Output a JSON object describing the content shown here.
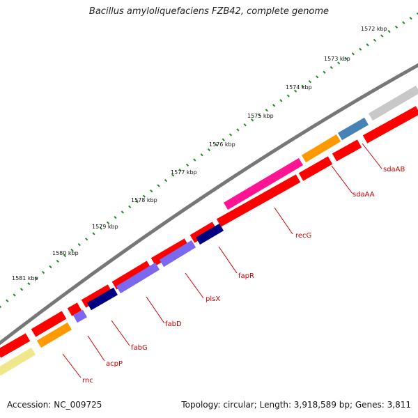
{
  "title": "Bacillus amyloliquefaciens FZB42, complete genome",
  "accession_text": "Accession: NC_009725",
  "summary_text": "Topology: circular; Length: 3,918,589 bp; Genes: 3,811",
  "colors": {
    "backbone": "#777777",
    "forward_cds": "#ff0000",
    "tick": "#228822",
    "label": "#cc0000"
  },
  "scale_labels": [
    "1572 kbp",
    "1573 kbp",
    "1574 kbp",
    "1575 kbp",
    "1576 kbp",
    "1577 kbp",
    "1578 kbp",
    "1579 kbp",
    "1580 kbp",
    "1581 kbp"
  ],
  "gene_labels": [
    "sdaAB",
    "sdaAA",
    "recG",
    "fapR",
    "plsX",
    "fabD",
    "fabG",
    "acpP",
    "rnc"
  ],
  "reverse_feature_colors": [
    "#c8c8c8",
    "#4682b4",
    "#ff9900",
    "#ff1493",
    "#000080",
    "#7b68ee",
    "#7b68ee",
    "#000080",
    "#7b68ee",
    "#ff9900",
    "#f0e68c"
  ]
}
